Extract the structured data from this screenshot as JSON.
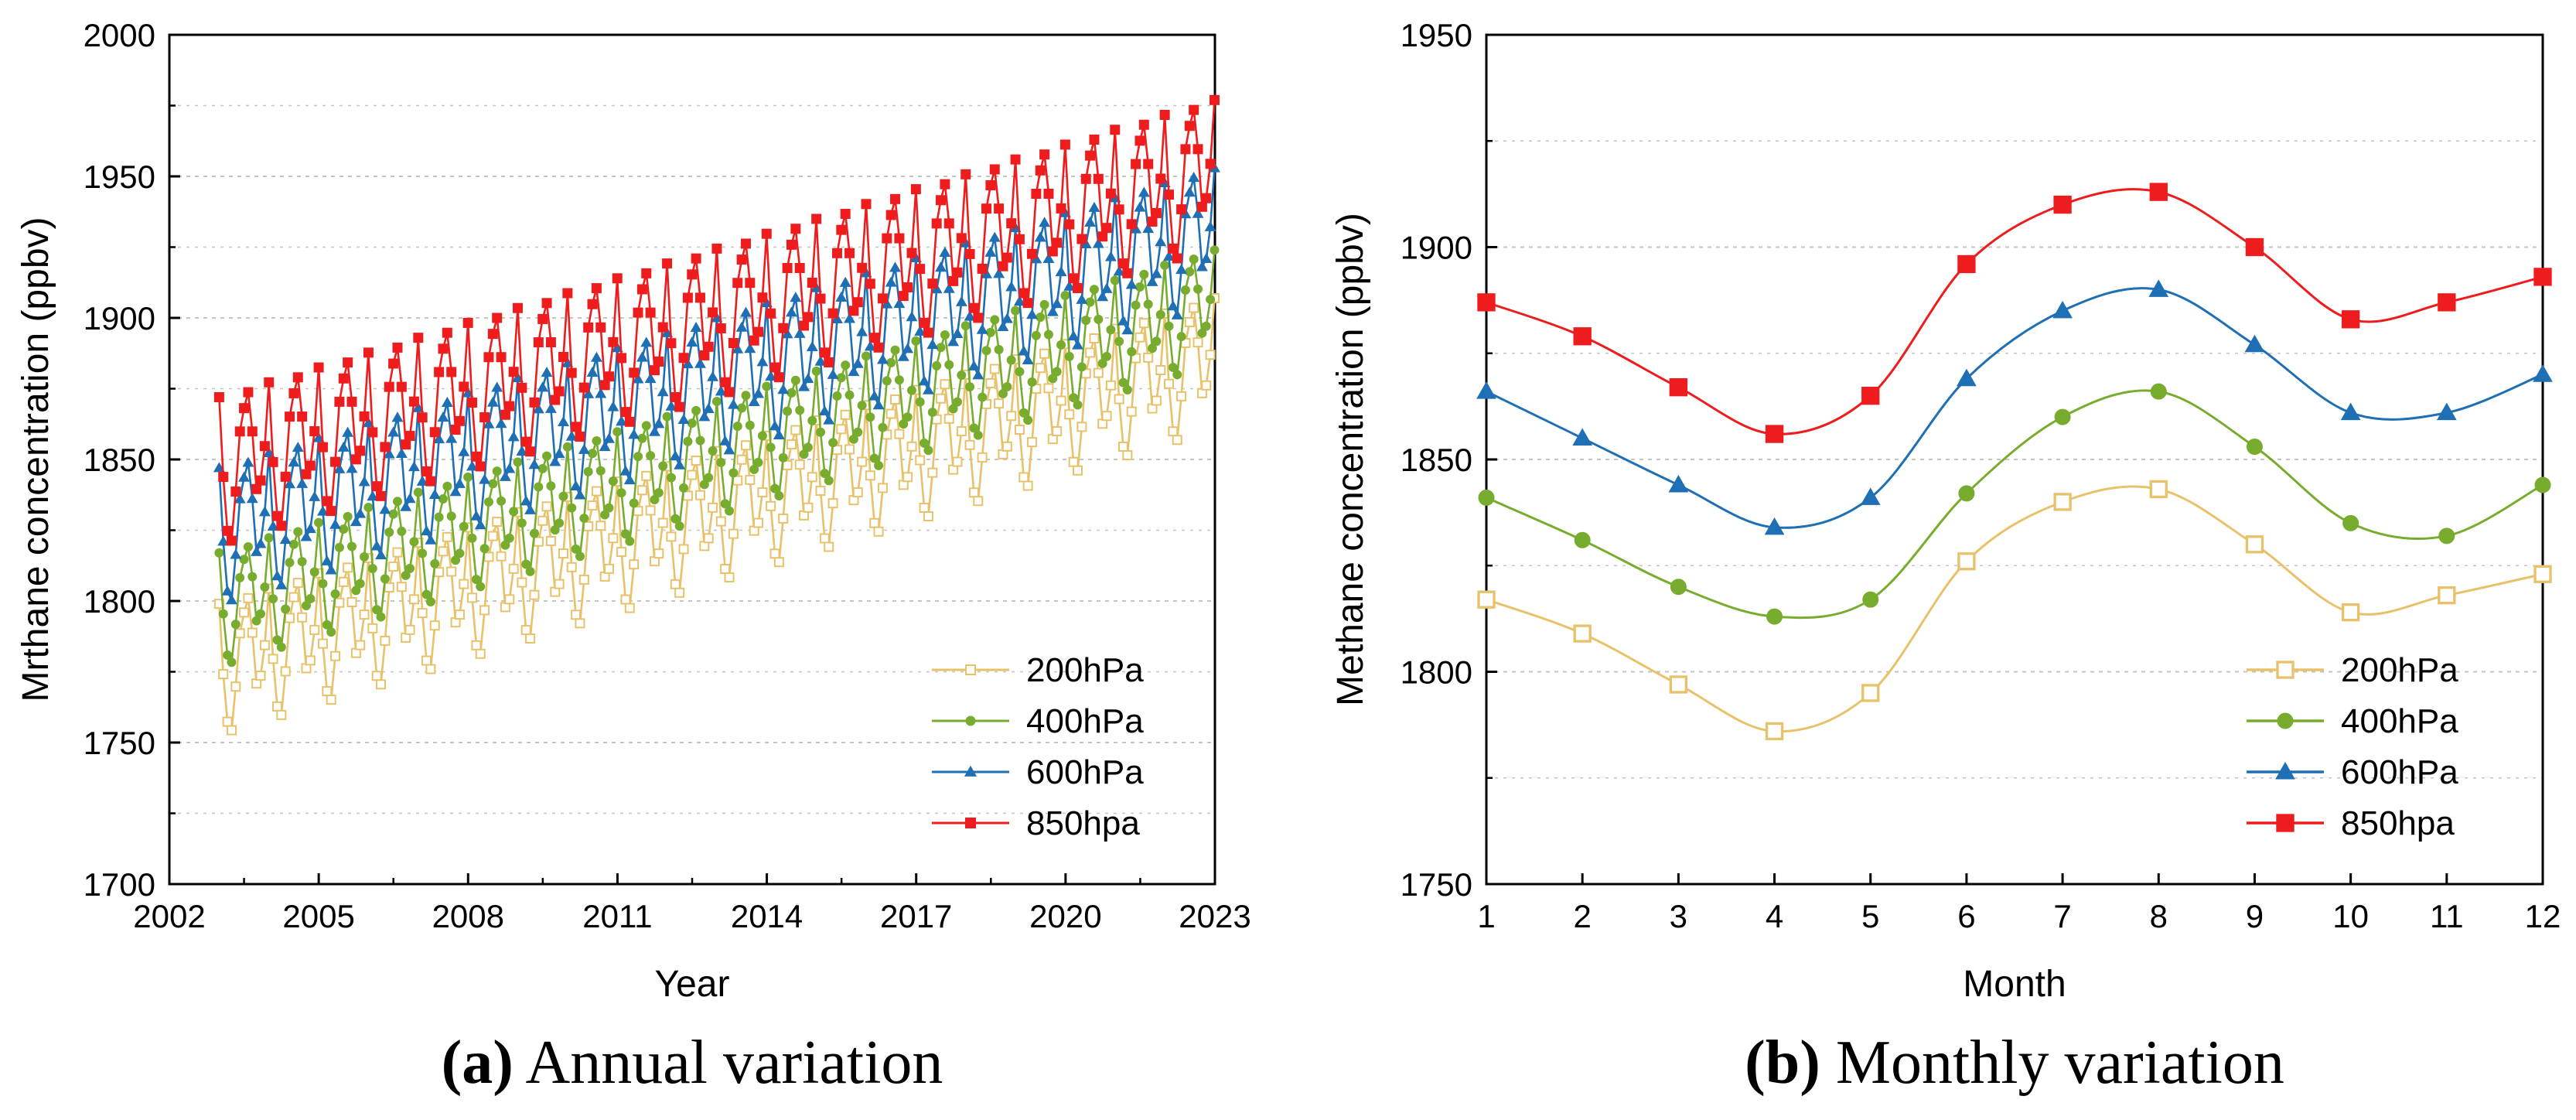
{
  "colors": {
    "s200": "#e8c26a",
    "s400": "#78ac2e",
    "s600": "#1f6fb4",
    "s850": "#ee1c1c",
    "grid": "#c4c4c4",
    "axis": "#000000"
  },
  "chart_data": [
    {
      "type": "line",
      "panel": "a",
      "caption_label": "a",
      "caption_text": "Annual variation",
      "xlabel": "Year",
      "ylabel": "Mrthane concentration (ppbv)",
      "xlim": [
        2002,
        2023
      ],
      "ylim": [
        1700,
        2000
      ],
      "xticks": [
        "2002",
        "2005",
        "2008",
        "2011",
        "2014",
        "2017",
        "2020",
        "2023"
      ],
      "yticks": [
        "1700",
        "1750",
        "1800",
        "1850",
        "1900",
        "1950",
        "2000"
      ],
      "grid": true,
      "legend_position": "bottom-right",
      "x_start": 2003.0,
      "x_step": 0.0833,
      "seasonal_pattern": [
        1.0,
        -0.1,
        -0.85,
        -1.0,
        -0.35,
        0.45,
        0.75,
        0.95,
        0.4,
        -0.4,
        -0.3,
        0.15
      ],
      "series": [
        {
          "name": "200hPa",
          "color_key": "s200",
          "marker": "square-open",
          "base": 1776,
          "slope": 5.4,
          "amplitude": 23
        },
        {
          "name": "400hPa",
          "color_key": "s400",
          "marker": "circle",
          "base": 1797,
          "slope": 5.35,
          "amplitude": 20
        },
        {
          "name": "600hPa",
          "color_key": "s600",
          "marker": "triangle",
          "base": 1823,
          "slope": 5.3,
          "amplitude": 24
        },
        {
          "name": "850hpa",
          "color_key": "s850",
          "marker": "square",
          "base": 1846,
          "slope": 5.25,
          "amplitude": 26
        }
      ]
    },
    {
      "type": "line",
      "panel": "b",
      "caption_label": "b",
      "caption_text": "Monthly variation",
      "xlabel": "Month",
      "ylabel": "Methane concentration (ppbv)",
      "xlim": [
        1,
        12
      ],
      "ylim": [
        1750,
        1950
      ],
      "xticks": [
        "1",
        "2",
        "3",
        "4",
        "5",
        "6",
        "7",
        "8",
        "9",
        "10",
        "11",
        "12"
      ],
      "yticks": [
        "1750",
        "1800",
        "1850",
        "1900",
        "1950"
      ],
      "grid": true,
      "legend_position": "bottom-right",
      "x": [
        1,
        2,
        3,
        4,
        5,
        6,
        7,
        8,
        9,
        10,
        11,
        12
      ],
      "series": [
        {
          "name": "200hPa",
          "color_key": "s200",
          "marker": "square-open",
          "values": [
            1817,
            1809,
            1797,
            1786,
            1795,
            1826,
            1840,
            1843,
            1830,
            1814,
            1818,
            1823
          ]
        },
        {
          "name": "400hPa",
          "color_key": "s400",
          "marker": "circle",
          "values": [
            1841,
            1831,
            1820,
            1813,
            1817,
            1842,
            1860,
            1866,
            1853,
            1835,
            1832,
            1844
          ]
        },
        {
          "name": "600hPa",
          "color_key": "s600",
          "marker": "triangle",
          "values": [
            1866,
            1855,
            1844,
            1834,
            1841,
            1869,
            1885,
            1890,
            1877,
            1861,
            1861,
            1870
          ]
        },
        {
          "name": "850hpa",
          "color_key": "s850",
          "marker": "square",
          "values": [
            1887,
            1879,
            1867,
            1856,
            1865,
            1896,
            1910,
            1913,
            1900,
            1883,
            1887,
            1893
          ]
        }
      ]
    }
  ]
}
